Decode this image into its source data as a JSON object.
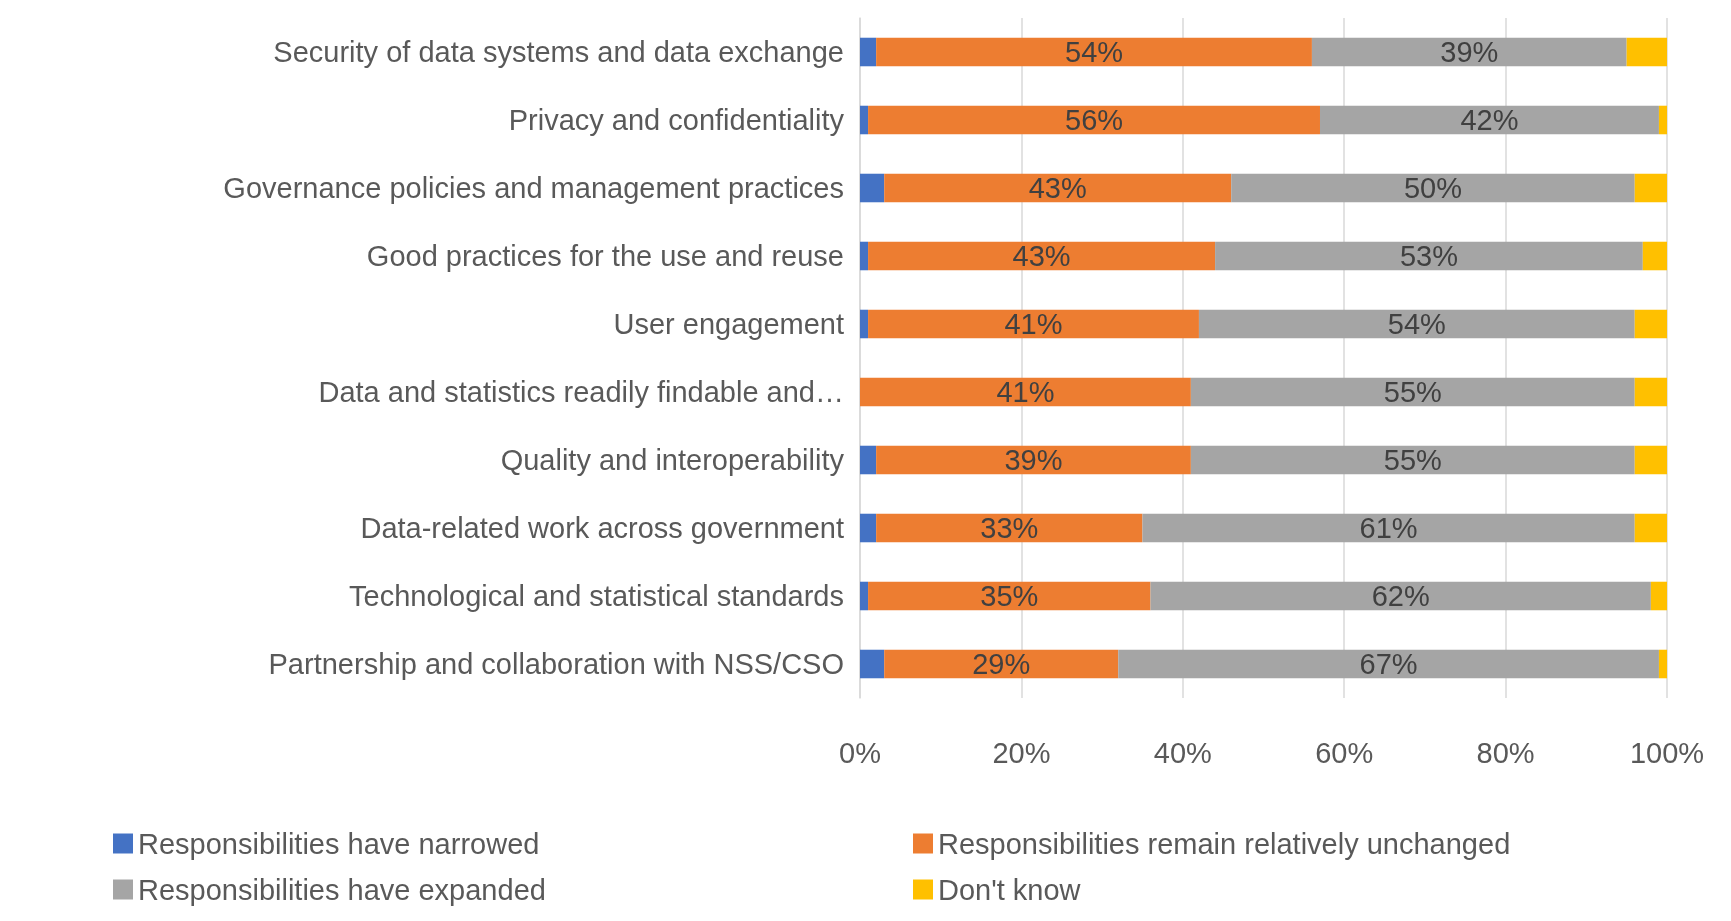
{
  "chart_data": {
    "type": "bar",
    "orientation": "horizontal",
    "stacked": true,
    "categories": [
      "Security of data systems and data exchange",
      "Privacy and confidentiality",
      "Governance policies and management practices",
      "Good practices for the use and reuse",
      "User engagement",
      "Data and statistics readily findable and…",
      "Quality and interoperability",
      "Data-related work across government",
      "Technological and statistical standards",
      "Partnership and collaboration with NSS/CSO"
    ],
    "series": [
      {
        "name": "Responsibilities have narrowed",
        "color": "#4472c4",
        "values": [
          2,
          1,
          3,
          1,
          1,
          0,
          2,
          2,
          1,
          3
        ]
      },
      {
        "name": "Responsibilities remain relatively unchanged",
        "color": "#ed7d31",
        "values": [
          54,
          56,
          43,
          43,
          41,
          41,
          39,
          33,
          35,
          29
        ],
        "value_labels": [
          "54%",
          "56%",
          "43%",
          "43%",
          "41%",
          "41%",
          "39%",
          "33%",
          "35%",
          "29%"
        ]
      },
      {
        "name": "Responsibilities have expanded",
        "color": "#a5a5a5",
        "values": [
          39,
          42,
          50,
          53,
          54,
          55,
          55,
          61,
          62,
          67
        ],
        "value_labels": [
          "39%",
          "42%",
          "50%",
          "53%",
          "54%",
          "55%",
          "55%",
          "61%",
          "62%",
          "67%"
        ]
      },
      {
        "name": "Don't know",
        "color": "#ffc000",
        "values": [
          5,
          1,
          4,
          3,
          4,
          4,
          4,
          4,
          2,
          1
        ]
      }
    ],
    "xlim": [
      0,
      100
    ],
    "xticks": [
      {
        "value": 0,
        "label": "0%"
      },
      {
        "value": 20,
        "label": "20%"
      },
      {
        "value": 40,
        "label": "40%"
      },
      {
        "value": 60,
        "label": "60%"
      },
      {
        "value": 80,
        "label": "80%"
      },
      {
        "value": 100,
        "label": "100%"
      }
    ],
    "grid": "x",
    "legend": "bottom"
  }
}
